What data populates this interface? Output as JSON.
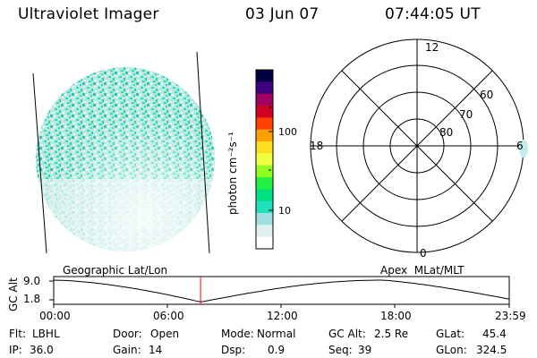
{
  "header": {
    "instrument": "Ultraviolet Imager",
    "date": "03 Jun 07",
    "time": "07:44:05 UT"
  },
  "colorbar": {
    "unit_label": "photon cm⁻²s⁻¹",
    "tick_labels": [
      "100",
      "10"
    ],
    "colors": [
      "#000040",
      "#400080",
      "#a00060",
      "#d00020",
      "#ff4000",
      "#ffa000",
      "#ffe020",
      "#f0ff40",
      "#90ff20",
      "#20f040",
      "#00e080",
      "#20e0c0",
      "#a0e0e0",
      "#e0f0f0",
      "#ffffff"
    ]
  },
  "polar_grid": {
    "ring_labels": [
      "60",
      "70",
      "80"
    ],
    "mlt_labels": {
      "top": "12",
      "left": "18",
      "right": "6",
      "bottom": "0"
    }
  },
  "timeline": {
    "left_title": "Geographic Lat/Lon",
    "right_title": "Apex  MLat/MLT",
    "y_axis_label": "GC Alt",
    "y_ticks": [
      "9.0",
      "1.8"
    ],
    "time_ticks": [
      "00:00",
      "06:00",
      "12:00",
      "18:00",
      "23:59"
    ],
    "current_time_fraction": 0.3223,
    "altitude_trace_fraction": [
      0.0,
      0.3,
      0.58,
      0.78,
      0.86,
      0.93
    ]
  },
  "footer": {
    "flt_label": "Flt:",
    "flt_value": "LBHL",
    "ip_label": "IP:",
    "ip_value": "36.0",
    "door_label": "Door:",
    "door_value": "Open",
    "gain_label": "Gain:",
    "gain_value": "14",
    "mode_label": "Mode:",
    "mode_value": "Normal",
    "dsp_label": "Dsp:",
    "dsp_value": "0.9",
    "gcalt_label": "GC Alt:",
    "gcalt_value": "2.5 Re",
    "seq_label": "Seq:",
    "seq_value": "39",
    "glat_label": "GLat:",
    "glat_value": "45.4",
    "glon_label": "GLon:",
    "glon_value": "324.5"
  },
  "colors": {
    "aurora_cyan": "#20e0c0",
    "aurora_light": "#d0ecec",
    "aurora_teal": "#30d0a0",
    "marker_red": "#ff0000"
  }
}
